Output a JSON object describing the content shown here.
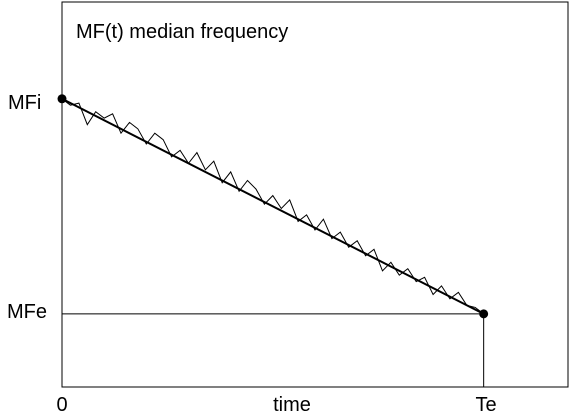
{
  "chart_data": {
    "type": "line",
    "title": "MF(t)  median frequency",
    "xlabel": "time",
    "ylabel": "",
    "x_ticks": [
      {
        "label": "0",
        "x": 0
      },
      {
        "label": "Te",
        "x": 1
      }
    ],
    "y_ticks": [
      {
        "label": "MFi",
        "y": 1
      },
      {
        "label": "MFe",
        "y": 0
      }
    ],
    "xlim": [
      0,
      1.2
    ],
    "ylim": [
      -0.34,
      1.45
    ],
    "grid": false,
    "series": [
      {
        "kind": "trend",
        "color": "#000000",
        "x": [
          0,
          1
        ],
        "y": [
          1,
          0
        ]
      },
      {
        "kind": "noisy",
        "color": "#000000",
        "x": [
          0,
          0.02,
          0.04,
          0.06,
          0.08,
          0.1,
          0.12,
          0.14,
          0.16,
          0.18,
          0.2,
          0.22,
          0.24,
          0.26,
          0.28,
          0.3,
          0.32,
          0.34,
          0.36,
          0.38,
          0.4,
          0.42,
          0.44,
          0.46,
          0.48,
          0.5,
          0.52,
          0.54,
          0.56,
          0.58,
          0.6,
          0.62,
          0.64,
          0.66,
          0.68,
          0.7,
          0.72,
          0.74,
          0.76,
          0.78,
          0.8,
          0.82,
          0.84,
          0.86,
          0.88,
          0.9,
          0.92,
          0.94,
          0.96,
          0.98,
          1
        ],
        "y": [
          1,
          0.97,
          0.98,
          0.88,
          0.94,
          0.91,
          0.93,
          0.84,
          0.89,
          0.86,
          0.79,
          0.84,
          0.81,
          0.73,
          0.76,
          0.7,
          0.75,
          0.67,
          0.71,
          0.61,
          0.66,
          0.57,
          0.62,
          0.58,
          0.51,
          0.55,
          0.49,
          0.53,
          0.43,
          0.46,
          0.39,
          0.44,
          0.35,
          0.38,
          0.31,
          0.34,
          0.27,
          0.3,
          0.2,
          0.24,
          0.18,
          0.21,
          0.15,
          0.17,
          0.09,
          0.13,
          0.07,
          0.1,
          0.04,
          0.03,
          0
        ]
      }
    ],
    "markers": [
      {
        "x": 0,
        "y": 1
      },
      {
        "x": 1,
        "y": 0
      }
    ]
  }
}
